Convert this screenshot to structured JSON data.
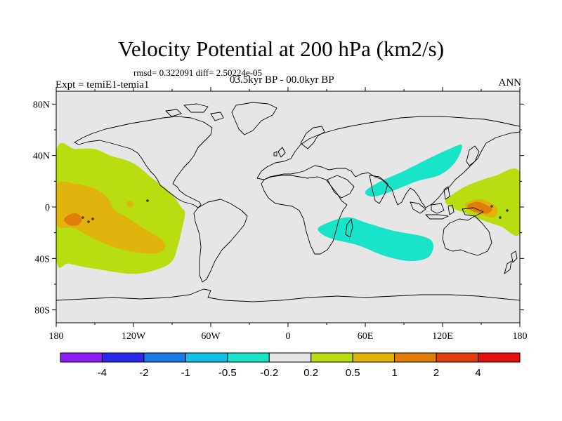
{
  "chart_data": {
    "type": "heatmap",
    "title": "Velocity Potential at 200 hPa (km2/s)",
    "stats_line": "rmsd= 0.322091  diff= 2.50224e-05",
    "left_label": "Expt = temiE1-temia1",
    "center_label": "03.5kyr BP - 00.0kyr BP",
    "right_label": "ANN",
    "projection": "cylindrical-equidistant",
    "xlim": [
      -180,
      180
    ],
    "ylim": [
      -90,
      90
    ],
    "x_ticks": [
      {
        "value": -180,
        "label": "180"
      },
      {
        "value": -120,
        "label": "120W"
      },
      {
        "value": -60,
        "label": "60W"
      },
      {
        "value": 0,
        "label": "0"
      },
      {
        "value": 60,
        "label": "60E"
      },
      {
        "value": 120,
        "label": "120E"
      },
      {
        "value": 180,
        "label": "180"
      }
    ],
    "y_ticks": [
      {
        "value": 80,
        "label": "80N"
      },
      {
        "value": 40,
        "label": "40N"
      },
      {
        "value": 0,
        "label": "0"
      },
      {
        "value": -40,
        "label": "40S"
      },
      {
        "value": -80,
        "label": "80S"
      }
    ],
    "levels": [
      -4,
      -2,
      -1,
      -0.5,
      -0.2,
      0.2,
      0.5,
      1,
      2,
      4
    ],
    "level_labels": [
      "-4",
      "-2",
      "-1",
      "-0.5",
      "-0.2",
      "0.2",
      "0.5",
      "1",
      "2",
      "4"
    ],
    "colors": [
      "#8b1ef0",
      "#2a2ae8",
      "#1a7ae6",
      "#12bde6",
      "#19e3c8",
      "#e6e6e6",
      "#b8dd10",
      "#e0b40c",
      "#e07d0c",
      "#e0400e",
      "#e40e0e"
    ],
    "background_color": "#e6e6e6",
    "regions": [
      {
        "name": "east-pacific-positive",
        "level": 0.2,
        "outline": [
          [
            -180,
            43
          ],
          [
            -165,
            45
          ],
          [
            -150,
            45
          ],
          [
            -138,
            40
          ],
          [
            -120,
            34
          ],
          [
            -105,
            22
          ],
          [
            -92,
            12
          ],
          [
            -83,
            0
          ],
          [
            -80,
            -5
          ],
          [
            -83,
            -20
          ],
          [
            -86,
            -32
          ],
          [
            -90,
            -42
          ],
          [
            -100,
            -48
          ],
          [
            -120,
            -52
          ],
          [
            -150,
            -48
          ],
          [
            -170,
            -44
          ],
          [
            -180,
            -40
          ]
        ]
      },
      {
        "name": "east-pacific-core",
        "level": 0.5,
        "outline": [
          [
            -180,
            17
          ],
          [
            -165,
            18
          ],
          [
            -150,
            14
          ],
          [
            -140,
            7
          ],
          [
            -135,
            -2
          ],
          [
            -125,
            -8
          ],
          [
            -110,
            -18
          ],
          [
            -100,
            -24
          ],
          [
            -95,
            -30
          ],
          [
            -102,
            -36
          ],
          [
            -125,
            -34
          ],
          [
            -148,
            -26
          ],
          [
            -165,
            -17
          ],
          [
            -180,
            -13
          ]
        ]
      },
      {
        "name": "central-pacific-max",
        "level": 1,
        "outline": [
          [
            -170,
            -6
          ],
          [
            -164,
            -5
          ],
          [
            -160,
            -9
          ],
          [
            -163,
            -14
          ],
          [
            -170,
            -14
          ],
          [
            -174,
            -10
          ]
        ]
      },
      {
        "name": "small-core-135W",
        "level": 0.5,
        "outline": [
          [
            -125,
            4
          ],
          [
            -121,
            4
          ],
          [
            -120,
            1
          ],
          [
            -124,
            0
          ]
        ]
      },
      {
        "name": "indian-ocean-negative",
        "level": -0.2,
        "outline": [
          [
            -40,
            15
          ],
          [
            -25,
            30
          ],
          [
            -5,
            40
          ],
          [
            15,
            45
          ],
          [
            25,
            40
          ],
          [
            35,
            40
          ],
          [
            45,
            45
          ],
          [
            50,
            55
          ],
          [
            58,
            64
          ],
          [
            75,
            68
          ],
          [
            100,
            70
          ],
          [
            125,
            67
          ],
          [
            148,
            60
          ],
          [
            152,
            52
          ],
          [
            148,
            40
          ],
          [
            135,
            25
          ],
          [
            122,
            5
          ],
          [
            118,
            -15
          ],
          [
            108,
            -40
          ],
          [
            95,
            -55
          ],
          [
            70,
            -60
          ],
          [
            40,
            -58
          ],
          [
            15,
            -53
          ],
          [
            10,
            -40
          ],
          [
            18,
            -20
          ],
          [
            0,
            -13
          ],
          [
            -20,
            -15
          ],
          [
            -35,
            -10
          ],
          [
            -40,
            5
          ]
        ]
      },
      {
        "name": "south-asia-core",
        "level": -0.5,
        "outline": [
          [
            60,
            12
          ],
          [
            72,
            20
          ],
          [
            90,
            28
          ],
          [
            110,
            38
          ],
          [
            125,
            45
          ],
          [
            135,
            48
          ],
          [
            130,
            35
          ],
          [
            118,
            25
          ],
          [
            100,
            20
          ],
          [
            80,
            12
          ],
          [
            66,
            8
          ]
        ]
      },
      {
        "name": "south-indian-core",
        "level": -0.5,
        "outline": [
          [
            25,
            -15
          ],
          [
            45,
            -8
          ],
          [
            60,
            -12
          ],
          [
            80,
            -18
          ],
          [
            110,
            -25
          ],
          [
            110,
            -38
          ],
          [
            95,
            -42
          ],
          [
            75,
            -38
          ],
          [
            55,
            -30
          ],
          [
            35,
            -25
          ],
          [
            25,
            -20
          ]
        ]
      },
      {
        "name": "west-pacific-positive",
        "level": 0.2,
        "outline": [
          [
            128,
            10
          ],
          [
            140,
            17
          ],
          [
            160,
            24
          ],
          [
            180,
            27
          ],
          [
            180,
            -20
          ],
          [
            165,
            -15
          ],
          [
            150,
            -10
          ],
          [
            138,
            -5
          ],
          [
            126,
            0
          ],
          [
            122,
            5
          ]
        ]
      },
      {
        "name": "west-pacific-core",
        "level": 0.5,
        "outline": [
          [
            138,
            3
          ],
          [
            150,
            6
          ],
          [
            162,
            0
          ],
          [
            160,
            -8
          ],
          [
            150,
            -6
          ],
          [
            140,
            -2
          ]
        ]
      },
      {
        "name": "west-pacific-max",
        "level": 1,
        "outline": [
          [
            140,
            2
          ],
          [
            148,
            4
          ],
          [
            158,
            -1
          ],
          [
            155,
            -5
          ],
          [
            146,
            -4
          ],
          [
            140,
            -1
          ]
        ]
      }
    ]
  }
}
